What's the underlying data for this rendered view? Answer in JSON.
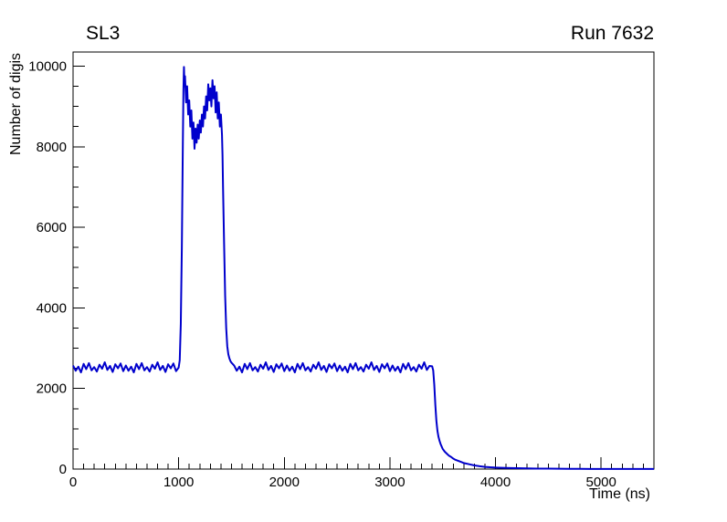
{
  "page": {
    "background": "#ffffff"
  },
  "chart_data": {
    "type": "line",
    "title": "SL3",
    "run_label": "Run 7632",
    "xlabel": "Time (ns)",
    "ylabel": "Number of digis",
    "xlim": [
      0,
      5500
    ],
    "ylim": [
      0,
      10350
    ],
    "xticks": [
      0,
      1000,
      2000,
      3000,
      4000,
      5000
    ],
    "yticks": [
      0,
      2000,
      4000,
      6000,
      8000,
      10000
    ],
    "x_minor_step": 100,
    "y_minor_step": 500,
    "grid": false,
    "legend_position": "none",
    "line_color": "#0000cc",
    "axis_color": "#000000",
    "points": [
      [
        0,
        2570
      ],
      [
        25,
        2440
      ],
      [
        50,
        2540
      ],
      [
        75,
        2400
      ],
      [
        100,
        2610
      ],
      [
        125,
        2480
      ],
      [
        150,
        2630
      ],
      [
        175,
        2450
      ],
      [
        200,
        2530
      ],
      [
        225,
        2420
      ],
      [
        250,
        2590
      ],
      [
        275,
        2490
      ],
      [
        300,
        2650
      ],
      [
        325,
        2460
      ],
      [
        350,
        2560
      ],
      [
        375,
        2410
      ],
      [
        400,
        2600
      ],
      [
        425,
        2500
      ],
      [
        450,
        2620
      ],
      [
        475,
        2430
      ],
      [
        500,
        2570
      ],
      [
        525,
        2440
      ],
      [
        550,
        2540
      ],
      [
        575,
        2400
      ],
      [
        600,
        2610
      ],
      [
        625,
        2480
      ],
      [
        650,
        2630
      ],
      [
        675,
        2450
      ],
      [
        700,
        2530
      ],
      [
        725,
        2420
      ],
      [
        750,
        2590
      ],
      [
        775,
        2490
      ],
      [
        800,
        2650
      ],
      [
        825,
        2460
      ],
      [
        850,
        2560
      ],
      [
        875,
        2410
      ],
      [
        900,
        2600
      ],
      [
        925,
        2500
      ],
      [
        950,
        2620
      ],
      [
        975,
        2430
      ],
      [
        1000,
        2520
      ],
      [
        1010,
        2700
      ],
      [
        1020,
        3600
      ],
      [
        1030,
        5500
      ],
      [
        1040,
        8200
      ],
      [
        1045,
        9400
      ],
      [
        1050,
        9980
      ],
      [
        1055,
        9500
      ],
      [
        1060,
        9750
      ],
      [
        1070,
        9100
      ],
      [
        1080,
        9500
      ],
      [
        1090,
        8800
      ],
      [
        1100,
        9150
      ],
      [
        1110,
        8500
      ],
      [
        1120,
        8900
      ],
      [
        1130,
        8200
      ],
      [
        1140,
        8600
      ],
      [
        1150,
        7950
      ],
      [
        1160,
        8450
      ],
      [
        1170,
        8100
      ],
      [
        1180,
        8550
      ],
      [
        1190,
        8200
      ],
      [
        1200,
        8650
      ],
      [
        1210,
        8350
      ],
      [
        1220,
        8800
      ],
      [
        1230,
        8500
      ],
      [
        1240,
        9000
      ],
      [
        1250,
        8700
      ],
      [
        1260,
        9250
      ],
      [
        1270,
        8900
      ],
      [
        1280,
        9550
      ],
      [
        1290,
        9150
      ],
      [
        1300,
        9450
      ],
      [
        1310,
        9000
      ],
      [
        1320,
        9650
      ],
      [
        1330,
        9200
      ],
      [
        1340,
        9500
      ],
      [
        1350,
        8850
      ],
      [
        1360,
        9350
      ],
      [
        1370,
        8700
      ],
      [
        1380,
        9100
      ],
      [
        1390,
        8500
      ],
      [
        1400,
        8800
      ],
      [
        1410,
        8300
      ],
      [
        1415,
        7800
      ],
      [
        1420,
        7000
      ],
      [
        1430,
        5600
      ],
      [
        1440,
        4300
      ],
      [
        1450,
        3500
      ],
      [
        1460,
        3050
      ],
      [
        1470,
        2850
      ],
      [
        1480,
        2750
      ],
      [
        1490,
        2680
      ],
      [
        1500,
        2640
      ],
      [
        1525,
        2570
      ],
      [
        1550,
        2440
      ],
      [
        1575,
        2540
      ],
      [
        1600,
        2400
      ],
      [
        1625,
        2610
      ],
      [
        1650,
        2480
      ],
      [
        1675,
        2630
      ],
      [
        1700,
        2450
      ],
      [
        1725,
        2530
      ],
      [
        1750,
        2420
      ],
      [
        1775,
        2590
      ],
      [
        1800,
        2490
      ],
      [
        1825,
        2650
      ],
      [
        1850,
        2460
      ],
      [
        1875,
        2560
      ],
      [
        1900,
        2410
      ],
      [
        1925,
        2600
      ],
      [
        1950,
        2500
      ],
      [
        1975,
        2620
      ],
      [
        2000,
        2430
      ],
      [
        2025,
        2570
      ],
      [
        2050,
        2440
      ],
      [
        2075,
        2540
      ],
      [
        2100,
        2400
      ],
      [
        2125,
        2610
      ],
      [
        2150,
        2480
      ],
      [
        2175,
        2630
      ],
      [
        2200,
        2450
      ],
      [
        2225,
        2530
      ],
      [
        2250,
        2420
      ],
      [
        2275,
        2590
      ],
      [
        2300,
        2490
      ],
      [
        2325,
        2650
      ],
      [
        2350,
        2460
      ],
      [
        2375,
        2560
      ],
      [
        2400,
        2410
      ],
      [
        2425,
        2600
      ],
      [
        2450,
        2500
      ],
      [
        2475,
        2620
      ],
      [
        2500,
        2430
      ],
      [
        2525,
        2570
      ],
      [
        2550,
        2440
      ],
      [
        2575,
        2540
      ],
      [
        2600,
        2400
      ],
      [
        2625,
        2610
      ],
      [
        2650,
        2480
      ],
      [
        2675,
        2630
      ],
      [
        2700,
        2450
      ],
      [
        2725,
        2530
      ],
      [
        2750,
        2420
      ],
      [
        2775,
        2590
      ],
      [
        2800,
        2490
      ],
      [
        2825,
        2650
      ],
      [
        2850,
        2460
      ],
      [
        2875,
        2560
      ],
      [
        2900,
        2410
      ],
      [
        2925,
        2600
      ],
      [
        2950,
        2500
      ],
      [
        2975,
        2620
      ],
      [
        3000,
        2430
      ],
      [
        3025,
        2570
      ],
      [
        3050,
        2440
      ],
      [
        3075,
        2540
      ],
      [
        3100,
        2400
      ],
      [
        3125,
        2610
      ],
      [
        3150,
        2480
      ],
      [
        3175,
        2630
      ],
      [
        3200,
        2450
      ],
      [
        3225,
        2530
      ],
      [
        3250,
        2420
      ],
      [
        3275,
        2590
      ],
      [
        3300,
        2490
      ],
      [
        3325,
        2650
      ],
      [
        3350,
        2460
      ],
      [
        3375,
        2560
      ],
      [
        3400,
        2550
      ],
      [
        3410,
        2450
      ],
      [
        3420,
        2100
      ],
      [
        3430,
        1600
      ],
      [
        3440,
        1200
      ],
      [
        3450,
        950
      ],
      [
        3460,
        800
      ],
      [
        3470,
        700
      ],
      [
        3480,
        620
      ],
      [
        3490,
        560
      ],
      [
        3500,
        500
      ],
      [
        3520,
        430
      ],
      [
        3540,
        380
      ],
      [
        3560,
        330
      ],
      [
        3580,
        300
      ],
      [
        3600,
        260
      ],
      [
        3620,
        230
      ],
      [
        3640,
        210
      ],
      [
        3660,
        190
      ],
      [
        3680,
        170
      ],
      [
        3700,
        150
      ],
      [
        3750,
        120
      ],
      [
        3800,
        90
      ],
      [
        3850,
        70
      ],
      [
        3900,
        55
      ],
      [
        3950,
        45
      ],
      [
        4000,
        38
      ],
      [
        4100,
        28
      ],
      [
        4200,
        22
      ],
      [
        4300,
        16
      ],
      [
        4400,
        12
      ],
      [
        4500,
        10
      ],
      [
        4600,
        8
      ],
      [
        4700,
        6
      ],
      [
        4800,
        5
      ],
      [
        4900,
        4
      ],
      [
        5000,
        4
      ],
      [
        5100,
        3
      ],
      [
        5200,
        3
      ],
      [
        5300,
        2
      ],
      [
        5400,
        2
      ],
      [
        5500,
        2
      ]
    ]
  }
}
